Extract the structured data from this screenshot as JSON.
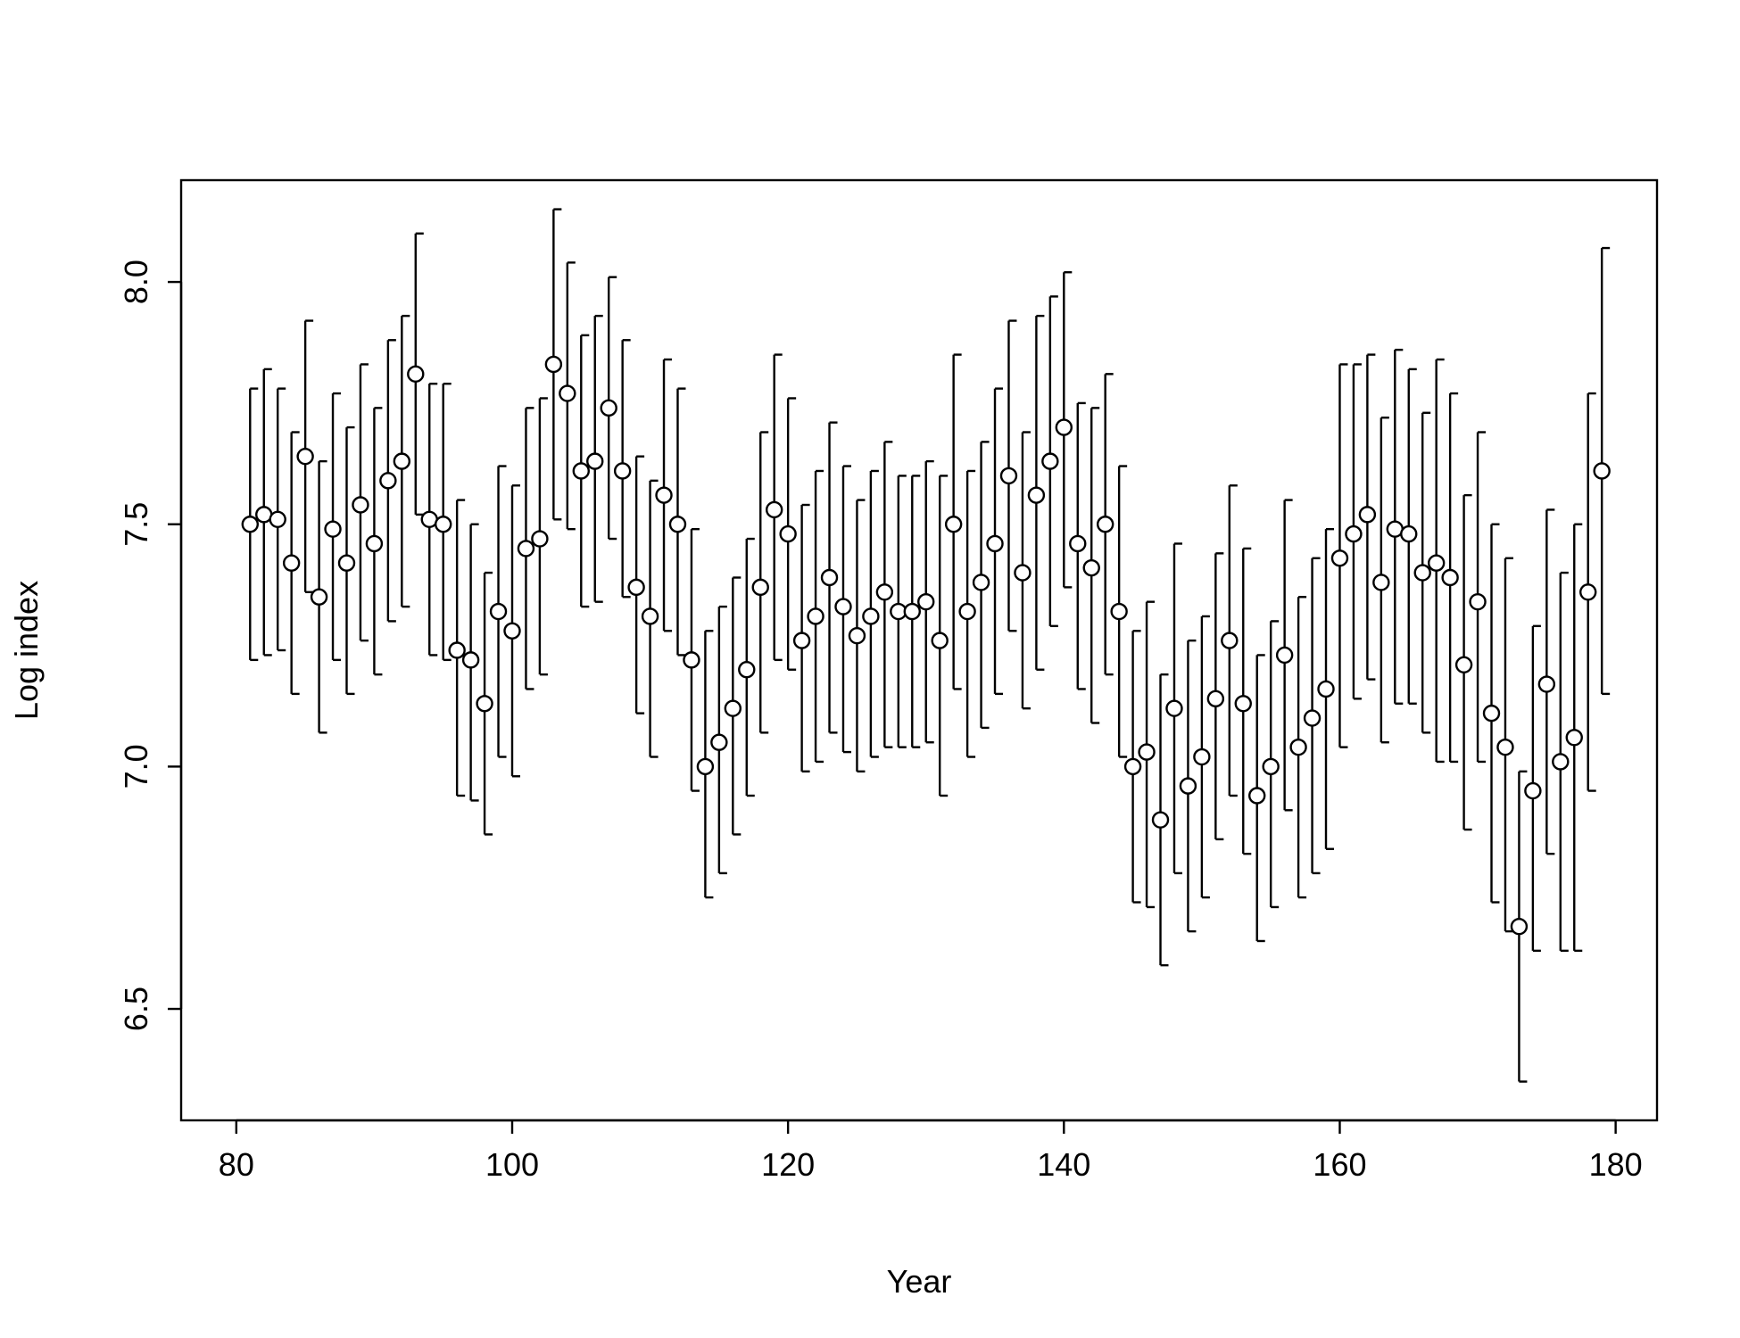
{
  "chart_data": {
    "type": "scatter",
    "title": "",
    "xlabel": "Year",
    "ylabel": "Log index",
    "xlim": [
      76,
      183
    ],
    "ylim": [
      6.27,
      8.21
    ],
    "x_ticks": [
      80,
      100,
      120,
      140,
      160,
      180
    ],
    "x_tick_labels": [
      "80",
      "100",
      "120",
      "140",
      "160",
      "180"
    ],
    "y_ticks": [
      6.5,
      7.0,
      7.5,
      8.0
    ],
    "y_tick_labels": [
      "6.5",
      "7.0",
      "7.5",
      "8.0"
    ],
    "grid": false,
    "legend": "none",
    "marker": "open-circle",
    "error_bars": true,
    "x": [
      81,
      82,
      83,
      84,
      85,
      86,
      87,
      88,
      89,
      90,
      91,
      92,
      93,
      94,
      95,
      96,
      97,
      98,
      99,
      100,
      101,
      102,
      103,
      104,
      105,
      106,
      107,
      108,
      109,
      110,
      111,
      112,
      113,
      114,
      115,
      116,
      117,
      118,
      119,
      120,
      121,
      122,
      123,
      124,
      125,
      126,
      127,
      128,
      129,
      130,
      131,
      132,
      133,
      134,
      135,
      136,
      137,
      138,
      139,
      140,
      141,
      142,
      143,
      144,
      145,
      146,
      147,
      148,
      149,
      150,
      151,
      152,
      153,
      154,
      155,
      156,
      157,
      158,
      159,
      160,
      161,
      162,
      163,
      164,
      165,
      166,
      167,
      168,
      169,
      170,
      171,
      172,
      173,
      174,
      175,
      176,
      177,
      178,
      179
    ],
    "y": [
      7.5,
      7.52,
      7.51,
      7.42,
      7.64,
      7.35,
      7.49,
      7.42,
      7.54,
      7.46,
      7.59,
      7.63,
      7.81,
      7.51,
      7.5,
      7.24,
      7.22,
      7.13,
      7.32,
      7.28,
      7.45,
      7.47,
      7.83,
      7.77,
      7.61,
      7.63,
      7.74,
      7.61,
      7.37,
      7.31,
      7.56,
      7.5,
      7.22,
      7.0,
      7.05,
      7.12,
      7.2,
      7.37,
      7.53,
      7.48,
      7.26,
      7.31,
      7.39,
      7.33,
      7.27,
      7.31,
      7.36,
      7.32,
      7.32,
      7.34,
      7.26,
      7.5,
      7.32,
      7.38,
      7.46,
      7.6,
      7.4,
      7.56,
      7.63,
      7.7,
      7.46,
      7.41,
      7.5,
      7.32,
      7.0,
      7.03,
      6.89,
      7.12,
      6.96,
      7.02,
      7.14,
      7.26,
      7.13,
      6.94,
      7.0,
      7.23,
      7.04,
      7.1,
      7.16,
      7.43,
      7.48,
      7.52,
      7.38,
      7.49,
      7.48,
      7.4,
      7.42,
      7.39,
      7.21,
      7.34,
      7.11,
      7.04,
      6.67,
      6.95,
      7.17,
      7.01,
      7.06,
      7.36,
      7.61
    ],
    "lower": [
      7.22,
      7.23,
      7.24,
      7.15,
      7.36,
      7.07,
      7.22,
      7.15,
      7.26,
      7.19,
      7.3,
      7.33,
      7.52,
      7.23,
      7.22,
      6.94,
      6.93,
      6.86,
      7.02,
      6.98,
      7.16,
      7.19,
      7.51,
      7.49,
      7.33,
      7.34,
      7.47,
      7.35,
      7.11,
      7.02,
      7.28,
      7.23,
      6.95,
      6.73,
      6.78,
      6.86,
      6.94,
      7.07,
      7.22,
      7.2,
      6.99,
      7.01,
      7.07,
      7.03,
      6.99,
      7.02,
      7.04,
      7.04,
      7.04,
      7.05,
      6.94,
      7.16,
      7.02,
      7.08,
      7.15,
      7.28,
      7.12,
      7.2,
      7.29,
      7.37,
      7.16,
      7.09,
      7.19,
      7.02,
      6.72,
      6.71,
      6.59,
      6.78,
      6.66,
      6.73,
      6.85,
      6.94,
      6.82,
      6.64,
      6.71,
      6.91,
      6.73,
      6.78,
      6.83,
      7.04,
      7.14,
      7.18,
      7.05,
      7.13,
      7.13,
      7.07,
      7.01,
      7.01,
      6.87,
      7.01,
      6.72,
      6.66,
      6.35,
      6.62,
      6.82,
      6.62,
      6.62,
      6.95,
      7.15
    ],
    "upper": [
      7.78,
      7.82,
      7.78,
      7.69,
      7.92,
      7.63,
      7.77,
      7.7,
      7.83,
      7.74,
      7.88,
      7.93,
      8.1,
      7.79,
      7.79,
      7.55,
      7.5,
      7.4,
      7.62,
      7.58,
      7.74,
      7.76,
      8.15,
      8.04,
      7.89,
      7.93,
      8.01,
      7.88,
      7.64,
      7.59,
      7.84,
      7.78,
      7.49,
      7.28,
      7.33,
      7.39,
      7.47,
      7.69,
      7.85,
      7.76,
      7.54,
      7.61,
      7.71,
      7.62,
      7.55,
      7.61,
      7.67,
      7.6,
      7.6,
      7.63,
      7.6,
      7.85,
      7.61,
      7.67,
      7.78,
      7.92,
      7.69,
      7.93,
      7.97,
      8.02,
      7.75,
      7.74,
      7.81,
      7.62,
      7.28,
      7.34,
      7.19,
      7.46,
      7.26,
      7.31,
      7.44,
      7.58,
      7.45,
      7.23,
      7.3,
      7.55,
      7.35,
      7.43,
      7.49,
      7.83,
      7.83,
      7.85,
      7.72,
      7.86,
      7.82,
      7.73,
      7.84,
      7.77,
      7.56,
      7.69,
      7.5,
      7.43,
      6.99,
      7.29,
      7.53,
      7.4,
      7.5,
      7.77,
      8.07
    ]
  }
}
